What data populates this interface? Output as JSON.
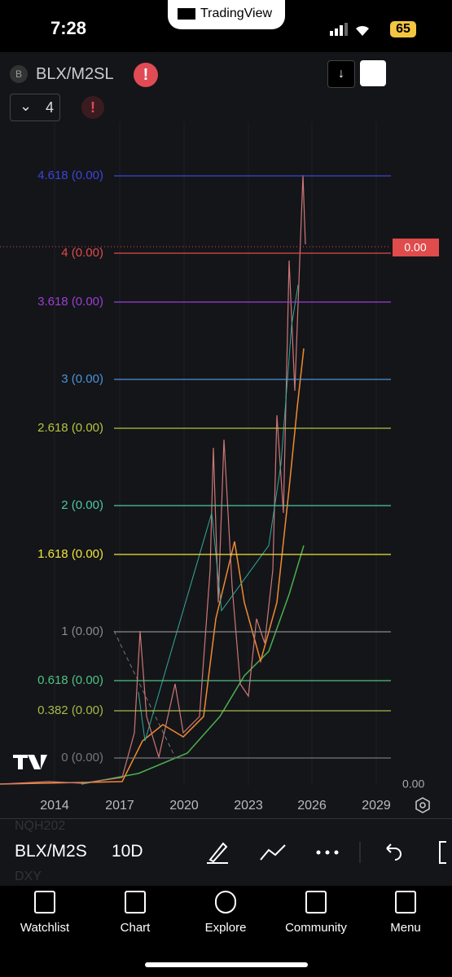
{
  "status_bar": {
    "time": "7:28",
    "app_pill": "TradingView",
    "battery": "65"
  },
  "header": {
    "badge": "B",
    "symbol": "BLX/M2SL",
    "indicator_count": "4"
  },
  "fib_levels": [
    {
      "label": "4.618 (0.00)",
      "color": "#3d44d6"
    },
    {
      "label": "4 (0.00)",
      "color": "#e04b4b"
    },
    {
      "label": "3.618 (0.00)",
      "color": "#9b3fd4"
    },
    {
      "label": "3 (0.00)",
      "color": "#4b93d6"
    },
    {
      "label": "2.618 (0.00)",
      "color": "#b5c43f"
    },
    {
      "label": "2 (0.00)",
      "color": "#4fc6a3"
    },
    {
      "label": "1.618 (0.00)",
      "color": "#f1e43d"
    },
    {
      "label": "1 (0.00)",
      "color": "#8a8a8a"
    },
    {
      "label": "0.618 (0.00)",
      "color": "#4fc282"
    },
    {
      "label": "0.382 (0.00)",
      "color": "#a8b848"
    },
    {
      "label": "0 (0.00)",
      "color": "#777777"
    }
  ],
  "price_tag": "0.00",
  "axis_value": "0.00",
  "x_axis": [
    "2014",
    "2017",
    "2020",
    "2023",
    "2026",
    "2029"
  ],
  "toolbar": {
    "symbol": "BLX/M2S",
    "interval": "10D",
    "ghost_top": "NQH202",
    "ghost_bottom": "DXY"
  },
  "nav": [
    "Watchlist",
    "Chart",
    "Explore",
    "Community",
    "Menu"
  ]
}
